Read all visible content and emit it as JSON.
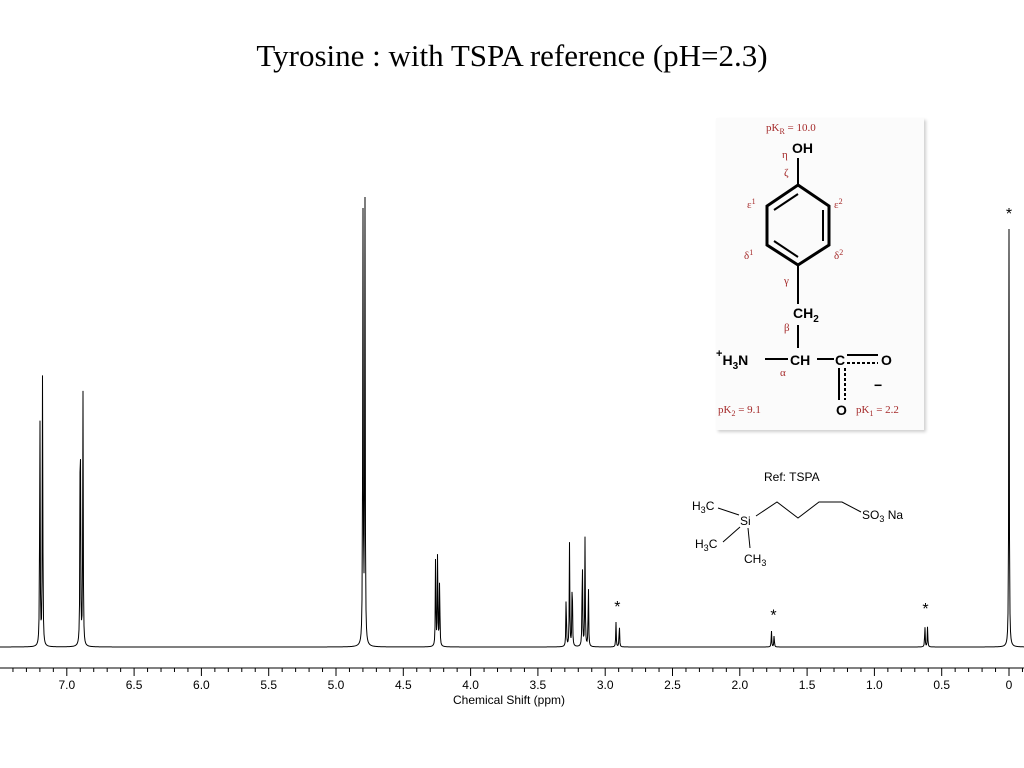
{
  "title": "Tyrosine : with TSPA reference (pH=2.3)",
  "chart_data": {
    "type": "line",
    "title": "Tyrosine : with TSPA reference (pH=2.3)",
    "xlabel": "Chemical Shift (ppm)",
    "ylabel": "",
    "x_reversed": true,
    "xlim": [
      7.5,
      -0.1
    ],
    "x_ticks": [
      "7.0",
      "6.5",
      "6.0",
      "5.5",
      "5.0",
      "4.5",
      "4.0",
      "3.5",
      "3.0",
      "2.5",
      "2.0",
      "1.5",
      "1.0",
      "0.5",
      "0"
    ],
    "x_tick_values": [
      7.0,
      6.5,
      6.0,
      5.5,
      5.0,
      4.5,
      4.0,
      3.5,
      3.0,
      2.5,
      2.0,
      1.5,
      1.0,
      0.5,
      0
    ],
    "grid": false,
    "peaks": [
      {
        "shift": 7.2,
        "height": 0.62
      },
      {
        "shift": 7.18,
        "height": 0.68
      },
      {
        "shift": 6.9,
        "height": 0.73
      },
      {
        "shift": 6.88,
        "height": 0.62
      },
      {
        "shift": 4.8,
        "height": 1.1
      },
      {
        "shift": 4.785,
        "height": 1.1
      },
      {
        "shift": 4.26,
        "height": 0.23
      },
      {
        "shift": 4.245,
        "height": 0.25
      },
      {
        "shift": 4.23,
        "height": 0.18
      },
      {
        "shift": 3.29,
        "height": 0.14
      },
      {
        "shift": 3.265,
        "height": 0.25
      },
      {
        "shift": 3.245,
        "height": 0.2
      },
      {
        "shift": 3.17,
        "height": 0.25
      },
      {
        "shift": 3.15,
        "height": 0.26
      },
      {
        "shift": 3.125,
        "height": 0.16
      },
      {
        "shift": 2.92,
        "height": 0.06
      },
      {
        "shift": 2.895,
        "height": 0.06
      },
      {
        "shift": 1.765,
        "height": 0.04
      },
      {
        "shift": 1.745,
        "height": 0.03
      },
      {
        "shift": 0.625,
        "height": 0.055
      },
      {
        "shift": 0.605,
        "height": 0.05
      },
      {
        "shift": 0.0,
        "height": 1.0
      }
    ],
    "annotations": [
      {
        "text": "*",
        "shift": 0.0
      },
      {
        "text": "*",
        "shift": 2.91
      },
      {
        "text": "*",
        "shift": 1.75
      },
      {
        "text": "*",
        "shift": 0.62
      }
    ]
  },
  "tyrosine": {
    "pkr": "pK_R = 10.0",
    "pk2": "pK_2 = 9.1",
    "pk1": "pK_1 = 2.2",
    "oh": "OH",
    "ch2": "CH",
    "nh3": "H",
    "ch": "CH",
    "o_top": "O",
    "o_bottom": "O",
    "minus": "−",
    "plus": "+",
    "eta": "η",
    "zeta": "ζ",
    "epsilon": "ε",
    "delta": "δ",
    "gamma": "γ",
    "beta": "β",
    "alpha": "α"
  },
  "tspa": {
    "label": "Ref: TSPA",
    "si": "Si",
    "so3": "SO",
    "na": "Na",
    "h3c": "H",
    "ch3": "CH"
  },
  "colors": {
    "annotation_red": "#a52a2a",
    "line": "#000000"
  }
}
